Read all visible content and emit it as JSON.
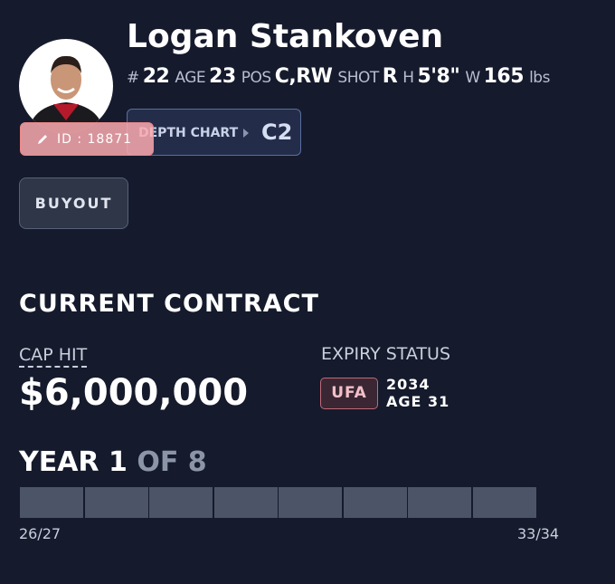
{
  "player": {
    "name": "Logan Stankoven",
    "stats": [
      {
        "label": "#",
        "value": "22"
      },
      {
        "label": "AGE",
        "value": "23"
      },
      {
        "label": "POS",
        "value": "C,RW"
      },
      {
        "label": "SHOT",
        "value": "R"
      },
      {
        "label": "H",
        "value": "5'8\""
      },
      {
        "label": "W",
        "value": "165",
        "unit": "lbs"
      }
    ],
    "id_badge": "ID : 18871",
    "depth_chart": {
      "label": "DEPTH CHART",
      "value": "C2"
    },
    "buyout_button": "BUYOUT"
  },
  "contract": {
    "title": "CURRENT CONTRACT",
    "cap_hit_label": "CAP HIT",
    "cap_hit": "$6,000,000",
    "expiry_label": "EXPIRY STATUS",
    "expiry_type": "UFA",
    "expiry_year": "2034",
    "expiry_age": "AGE 31",
    "year_current": "YEAR 1",
    "year_total": "OF 8",
    "start_season": "26/27",
    "end_season": "33/34"
  }
}
